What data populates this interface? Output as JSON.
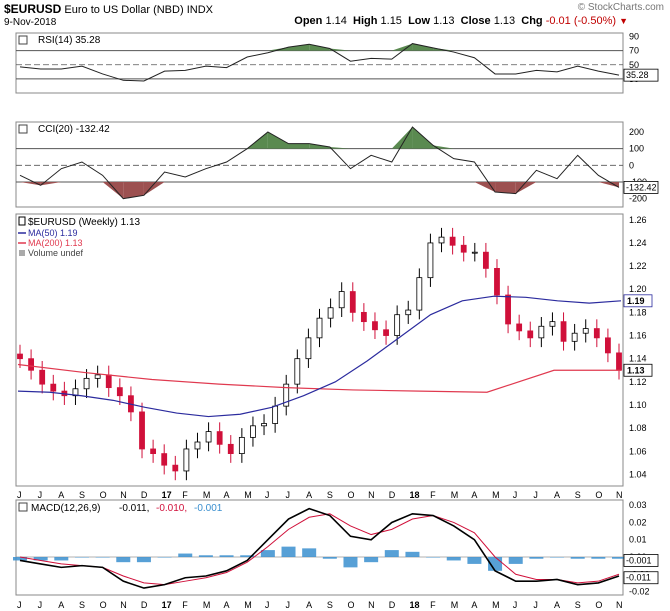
{
  "header": {
    "symbol": "$EURUSD",
    "name": "Euro to US Dollar (NBD)",
    "exchange": "INDX",
    "date": "9-Nov-2018",
    "watermark": "© StockCharts.com",
    "open_label": "Open",
    "open": "1.14",
    "high_label": "High",
    "high": "1.15",
    "low_label": "Low",
    "low": "1.13",
    "close_label": "Close",
    "close": "1.13",
    "chg_label": "Chg",
    "chg": "-0.01 (-0.50%)"
  },
  "colors": {
    "up": "#000000",
    "down": "#d0103a",
    "ma50": "#2b2b9e",
    "ma200": "#e0394f",
    "rsi_fill": "#5a8a50",
    "cci_up": "#5a8a50",
    "cci_down": "#9c5050",
    "macd_hist": "#3a8fcf"
  },
  "chart_data": [
    {
      "type": "line",
      "title": "RSI(14) 35.28",
      "y_ticks": [
        30,
        50,
        70,
        90
      ],
      "ylim": [
        10,
        95
      ],
      "ref_lines": [
        30,
        50,
        70
      ],
      "last_label": "35.28",
      "x": [
        "2016-06-24",
        "2016-07-22",
        "2016-08-26",
        "2016-09-23",
        "2016-10-21",
        "2016-11-25",
        "2016-12-23",
        "2017-01-20",
        "2017-02-24",
        "2017-03-24",
        "2017-04-21",
        "2017-05-26",
        "2017-06-23",
        "2017-07-21",
        "2017-08-25",
        "2017-09-22",
        "2017-10-20",
        "2017-11-24",
        "2017-12-22",
        "2018-01-26",
        "2018-02-23",
        "2018-03-23",
        "2018-04-20",
        "2018-05-25",
        "2018-06-22",
        "2018-07-20",
        "2018-08-24",
        "2018-09-21",
        "2018-10-19",
        "2018-11-09"
      ],
      "values": [
        47,
        44,
        44,
        48,
        37,
        28,
        27,
        41,
        42,
        48,
        46,
        61,
        67,
        75,
        79,
        73,
        55,
        59,
        58,
        80,
        74,
        68,
        60,
        37,
        37,
        42,
        40,
        48,
        41,
        35.28
      ]
    },
    {
      "type": "line",
      "title": "CCI(20) -132.42",
      "y_ticks": [
        -200,
        -100,
        0,
        100,
        200
      ],
      "ylim": [
        -250,
        260
      ],
      "ref_lines": [
        -100,
        0,
        100
      ],
      "last_label": "-132.42",
      "x": [
        "2016-06-24",
        "2016-07-22",
        "2016-08-26",
        "2016-09-23",
        "2016-10-21",
        "2016-11-25",
        "2016-12-23",
        "2017-01-20",
        "2017-02-24",
        "2017-03-24",
        "2017-04-21",
        "2017-05-26",
        "2017-06-23",
        "2017-07-21",
        "2017-08-25",
        "2017-09-22",
        "2017-10-20",
        "2017-11-24",
        "2017-12-22",
        "2018-01-26",
        "2018-02-23",
        "2018-03-23",
        "2018-04-20",
        "2018-05-25",
        "2018-06-22",
        "2018-07-20",
        "2018-08-24",
        "2018-09-21",
        "2018-10-19",
        "2018-11-09"
      ],
      "values": [
        -60,
        -120,
        -20,
        20,
        -60,
        -200,
        -180,
        -40,
        -70,
        -20,
        20,
        100,
        200,
        130,
        130,
        110,
        -20,
        60,
        20,
        230,
        120,
        40,
        20,
        -160,
        -170,
        -30,
        -80,
        60,
        -60,
        -132.42
      ]
    },
    {
      "type": "candlestick",
      "title": "$EURUSD (Weekly) 1.13",
      "y_ticks": [
        1.04,
        1.06,
        1.08,
        1.1,
        1.12,
        1.14,
        1.16,
        1.18,
        1.2,
        1.22,
        1.24,
        1.26
      ],
      "ylim": [
        1.03,
        1.265
      ],
      "xlabels": [
        "J",
        "J",
        "A",
        "S",
        "O",
        "N",
        "D",
        "17",
        "F",
        "M",
        "A",
        "M",
        "J",
        "J",
        "A",
        "S",
        "O",
        "N",
        "D",
        "18",
        "F",
        "M",
        "A",
        "M",
        "J",
        "J",
        "A",
        "S",
        "O",
        "N"
      ],
      "legend": [
        {
          "name": "$EURUSD (Weekly) 1.13",
          "marker": "candle"
        },
        {
          "name": "MA(50) 1.19",
          "color": "#2b2b9e"
        },
        {
          "name": "MA(200) 1.13",
          "color": "#e0394f"
        },
        {
          "name": "Volume undef",
          "marker": "bar"
        }
      ],
      "close_series": [
        1.14,
        1.13,
        1.118,
        1.112,
        1.108,
        1.114,
        1.123,
        1.126,
        1.115,
        1.108,
        1.094,
        1.062,
        1.058,
        1.048,
        1.043,
        1.062,
        1.068,
        1.077,
        1.066,
        1.058,
        1.072,
        1.082,
        1.084,
        1.099,
        1.118,
        1.14,
        1.158,
        1.175,
        1.184,
        1.198,
        1.18,
        1.172,
        1.165,
        1.16,
        1.178,
        1.182,
        1.21,
        1.24,
        1.245,
        1.238,
        1.232,
        1.232,
        1.218,
        1.195,
        1.17,
        1.164,
        1.158,
        1.168,
        1.172,
        1.155,
        1.162,
        1.166,
        1.158,
        1.145,
        1.13
      ],
      "ma50": [
        1.112,
        1.111,
        1.108,
        1.104,
        1.098,
        1.093,
        1.09,
        1.092,
        1.098,
        1.108,
        1.12,
        1.138,
        1.158,
        1.178,
        1.19,
        1.194,
        1.193,
        1.19,
        1.188,
        1.19
      ],
      "ma200": [
        1.135,
        1.128,
        1.122,
        1.118,
        1.115,
        1.113,
        1.112,
        1.111,
        1.13,
        1.13
      ]
    },
    {
      "type": "line",
      "title": "MACD(12,26,9) -0.011, -0.010, -0.001",
      "series_labels": [
        "MACD(12,26,9)",
        "-0.011,",
        "-0.010,",
        "-0.001"
      ],
      "y_ticks": [
        -0.02,
        -0.01,
        0.0,
        0.01,
        0.02,
        0.03
      ],
      "ylim": [
        -0.022,
        0.033
      ],
      "last_labels": [
        "-0.001",
        "-0.011"
      ],
      "xlabels": [
        "J",
        "J",
        "A",
        "S",
        "O",
        "N",
        "D",
        "17",
        "F",
        "M",
        "A",
        "M",
        "J",
        "J",
        "A",
        "S",
        "O",
        "N",
        "D",
        "18",
        "F",
        "M",
        "A",
        "M",
        "J",
        "J",
        "A",
        "S",
        "O",
        "N"
      ],
      "macd": [
        -0.002,
        -0.004,
        -0.006,
        -0.005,
        -0.006,
        -0.014,
        -0.018,
        -0.016,
        -0.012,
        -0.011,
        -0.008,
        -0.002,
        0.01,
        0.022,
        0.028,
        0.024,
        0.012,
        0.01,
        0.02,
        0.025,
        0.024,
        0.018,
        0.01,
        -0.008,
        -0.014,
        -0.014,
        -0.013,
        -0.016,
        -0.015,
        -0.011
      ],
      "signal": [
        0.0,
        -0.002,
        -0.004,
        -0.005,
        -0.006,
        -0.011,
        -0.015,
        -0.016,
        -0.014,
        -0.012,
        -0.009,
        -0.003,
        0.006,
        0.016,
        0.023,
        0.025,
        0.018,
        0.013,
        0.016,
        0.022,
        0.024,
        0.02,
        0.014,
        0.0,
        -0.01,
        -0.013,
        -0.013,
        -0.015,
        -0.014,
        -0.01
      ],
      "histogram": [
        -0.002,
        -0.002,
        -0.002,
        0.0,
        0.0,
        -0.003,
        -0.003,
        0.0,
        0.002,
        0.001,
        0.001,
        0.001,
        0.004,
        0.006,
        0.005,
        -0.001,
        -0.006,
        -0.003,
        0.004,
        0.003,
        0.0,
        -0.002,
        -0.004,
        -0.008,
        -0.004,
        -0.001,
        0.0,
        -0.001,
        -0.001,
        -0.001
      ]
    }
  ]
}
